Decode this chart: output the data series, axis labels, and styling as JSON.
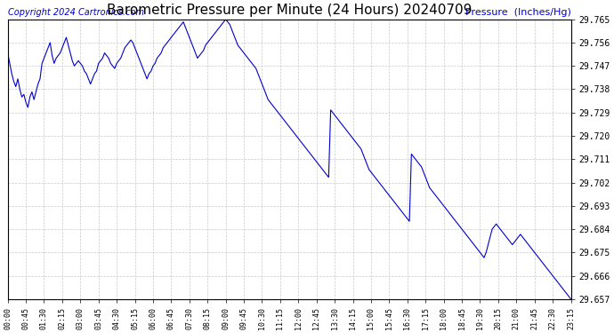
{
  "title": "Barometric Pressure per Minute (24 Hours) 20240709",
  "copyright_text": "Copyright 2024 Cartronics.com",
  "ylabel": "Pressure  (Inches/Hg)",
  "line_color": "#0000cc",
  "background_color": "#ffffff",
  "grid_color": "#bbbbbb",
  "title_color": "#000000",
  "ylabel_color": "#0000cc",
  "copyright_color": "#0000cc",
  "ylim_min": 29.657,
  "ylim_max": 29.765,
  "yticks": [
    29.657,
    29.666,
    29.675,
    29.684,
    29.693,
    29.702,
    29.711,
    29.72,
    29.729,
    29.738,
    29.747,
    29.756,
    29.765
  ],
  "xtick_labels": [
    "00:00",
    "00:45",
    "01:30",
    "02:15",
    "03:00",
    "03:45",
    "04:30",
    "05:15",
    "06:00",
    "06:45",
    "07:30",
    "08:15",
    "09:00",
    "09:45",
    "10:30",
    "11:15",
    "12:00",
    "12:45",
    "13:30",
    "14:15",
    "15:00",
    "15:45",
    "16:30",
    "17:15",
    "18:00",
    "18:45",
    "19:30",
    "20:15",
    "21:00",
    "21:45",
    "22:30",
    "23:15"
  ],
  "pressure_data": [
    29.752,
    29.748,
    29.744,
    29.741,
    29.739,
    29.742,
    29.738,
    29.735,
    29.736,
    29.733,
    29.731,
    29.735,
    29.737,
    29.734,
    29.737,
    29.74,
    29.742,
    29.748,
    29.75,
    29.752,
    29.754,
    29.756,
    29.751,
    29.748,
    29.75,
    29.751,
    29.752,
    29.754,
    29.756,
    29.758,
    29.755,
    29.752,
    29.749,
    29.747,
    29.748,
    29.749,
    29.748,
    29.747,
    29.745,
    29.744,
    29.742,
    29.74,
    29.742,
    29.744,
    29.745,
    29.748,
    29.749,
    29.75,
    29.752,
    29.751,
    29.75,
    29.748,
    29.747,
    29.746,
    29.748,
    29.749,
    29.75,
    29.752,
    29.754,
    29.755,
    29.756,
    29.757,
    29.756,
    29.754,
    29.752,
    29.75,
    29.748,
    29.746,
    29.744,
    29.742,
    29.744,
    29.745,
    29.747,
    29.748,
    29.75,
    29.751,
    29.752,
    29.754,
    29.755,
    29.756,
    29.757,
    29.758,
    29.759,
    29.76,
    29.761,
    29.762,
    29.763,
    29.764,
    29.762,
    29.76,
    29.758,
    29.756,
    29.754,
    29.752,
    29.75,
    29.751,
    29.752,
    29.753,
    29.755,
    29.756,
    29.757,
    29.758,
    29.759,
    29.76,
    29.761,
    29.762,
    29.763,
    29.764,
    29.765,
    29.764,
    29.763,
    29.761,
    29.759,
    29.757,
    29.755,
    29.754,
    29.753,
    29.752,
    29.751,
    29.75,
    29.749,
    29.748,
    29.747,
    29.746,
    29.744,
    29.742,
    29.74,
    29.738,
    29.736,
    29.734,
    29.733,
    29.732,
    29.731,
    29.73,
    29.729,
    29.728,
    29.727,
    29.726,
    29.725,
    29.724,
    29.723,
    29.722,
    29.721,
    29.72,
    29.719,
    29.718,
    29.717,
    29.716,
    29.715,
    29.714,
    29.713,
    29.712,
    29.711,
    29.71,
    29.709,
    29.708,
    29.707,
    29.706,
    29.705,
    29.704,
    29.73,
    29.729,
    29.728,
    29.727,
    29.726,
    29.725,
    29.724,
    29.723,
    29.722,
    29.721,
    29.72,
    29.719,
    29.718,
    29.717,
    29.716,
    29.715,
    29.713,
    29.711,
    29.709,
    29.707,
    29.706,
    29.705,
    29.704,
    29.703,
    29.702,
    29.701,
    29.7,
    29.699,
    29.698,
    29.697,
    29.696,
    29.695,
    29.694,
    29.693,
    29.692,
    29.691,
    29.69,
    29.689,
    29.688,
    29.687,
    29.713,
    29.712,
    29.711,
    29.71,
    29.709,
    29.708,
    29.706,
    29.704,
    29.702,
    29.7,
    29.699,
    29.698,
    29.697,
    29.696,
    29.695,
    29.694,
    29.693,
    29.692,
    29.691,
    29.69,
    29.689,
    29.688,
    29.687,
    29.686,
    29.685,
    29.684,
    29.683,
    29.682,
    29.681,
    29.68,
    29.679,
    29.678,
    29.677,
    29.676,
    29.675,
    29.674,
    29.673,
    29.675,
    29.678,
    29.681,
    29.684,
    29.685,
    29.686,
    29.685,
    29.684,
    29.683,
    29.682,
    29.681,
    29.68,
    29.679,
    29.678,
    29.679,
    29.68,
    29.681,
    29.682,
    29.681,
    29.68,
    29.679,
    29.678,
    29.677,
    29.676,
    29.675,
    29.674,
    29.673,
    29.672,
    29.671,
    29.67,
    29.669,
    29.668,
    29.667,
    29.666,
    29.665,
    29.664,
    29.663,
    29.662,
    29.661,
    29.66,
    29.659,
    29.658,
    29.657
  ]
}
